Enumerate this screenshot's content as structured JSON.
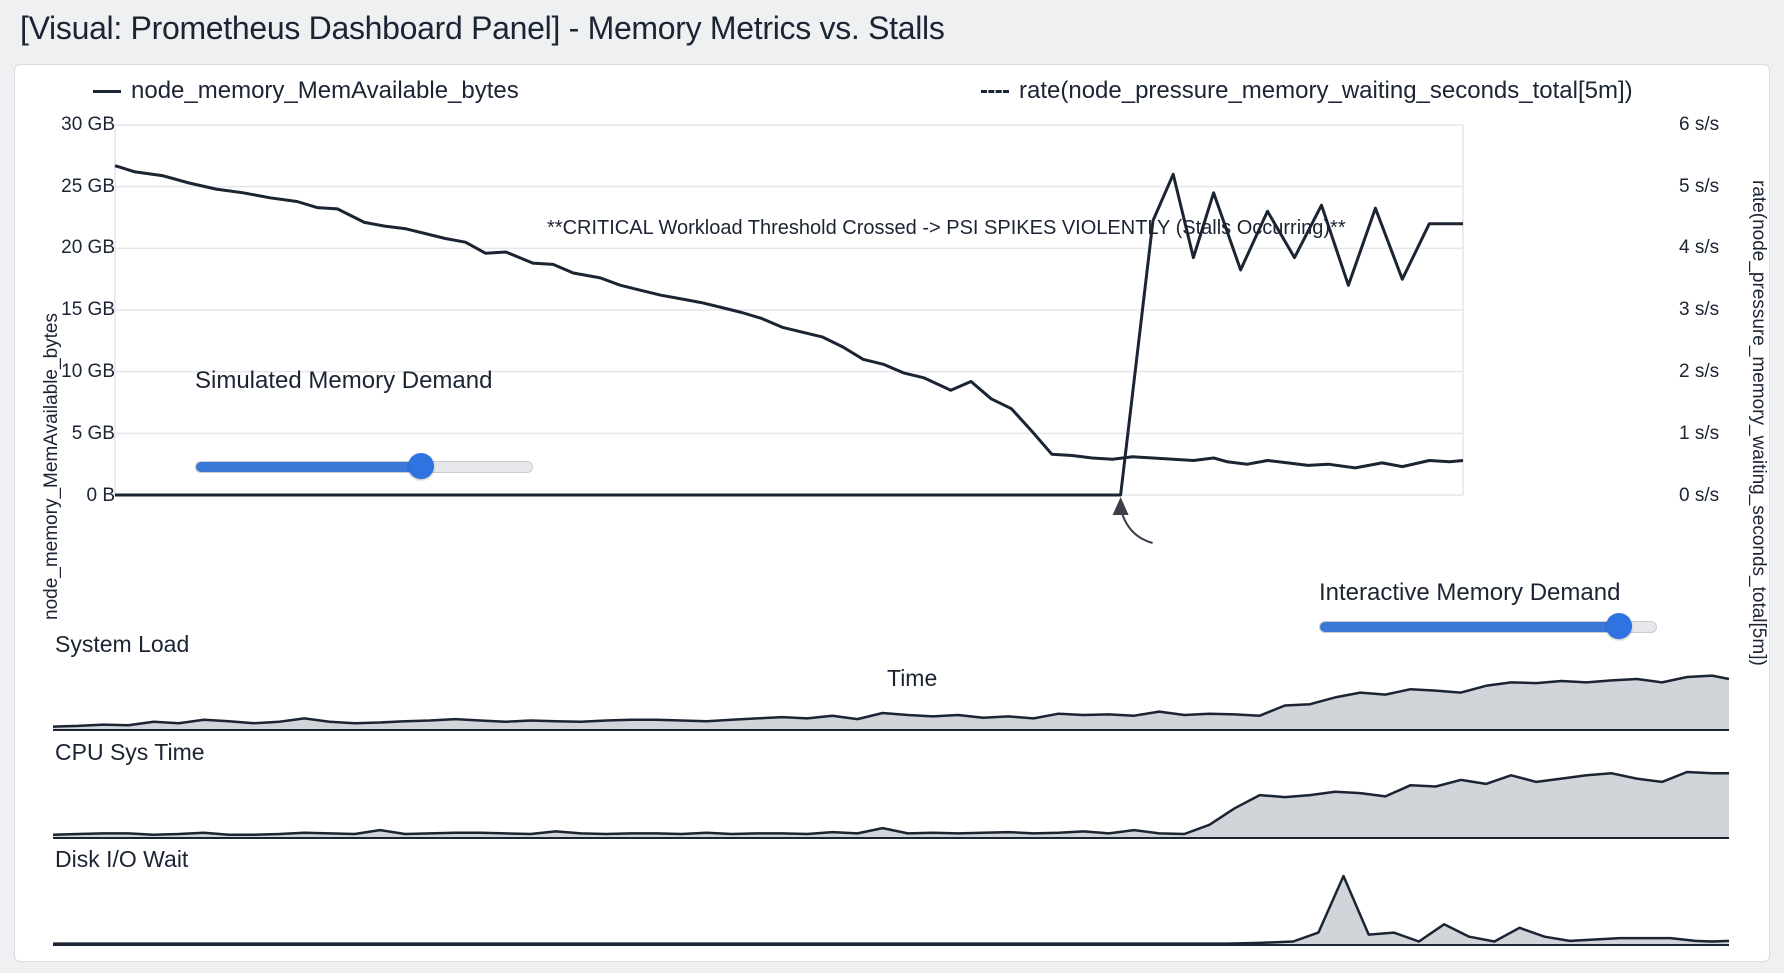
{
  "page": {
    "title": "[Visual: Prometheus Dashboard Panel] - Memory Metrics vs. Stalls"
  },
  "legend": {
    "left_series": "node_memory_MemAvailable_bytes",
    "right_series": "rate(node_pressure_memory_waiting_seconds_total[5m])"
  },
  "annotation": "**CRITICAL Workload Threshold Crossed -> PSI SPIKES VIOLENTLY (Stalls Occurring)**",
  "sliders": [
    {
      "label": "Simulated Memory Demand",
      "value_fraction": 0.67
    },
    {
      "label": "Interactive Memory Demand",
      "value_fraction": 0.89
    }
  ],
  "colors": {
    "line": "#1b2433",
    "grid": "#e3e6ea",
    "accent": "#3b78d8",
    "area_fill": "#c9ccd2"
  },
  "chart_data": [
    {
      "type": "line",
      "xlabel": "Time",
      "ylabel_left": "node_memory_MemAvailable_bytes",
      "ylabel_right": "rate(node_pressure_memory_waiting_seconds_total[5m])",
      "y_left_ticks": [
        "30 GB",
        "25 GB",
        "20 GB",
        "15 GB",
        "10 GB",
        "5 GB",
        "0 B"
      ],
      "y_right_ticks": [
        "6 s/s",
        "5 s/s",
        "4 s/s",
        "3 s/s",
        "2 s/s",
        "1 s/s",
        "0 s/s"
      ],
      "ylim_left": [
        0,
        30
      ],
      "ylim_right": [
        0,
        6
      ],
      "grid": true,
      "series": [
        {
          "name": "node_memory_MemAvailable_bytes",
          "axis": "left",
          "style": "solid",
          "x": [
            0,
            1.5,
            3.5,
            5.5,
            7.5,
            9.5,
            11.5,
            13.5,
            15,
            16.5,
            18.5,
            20,
            21.5,
            23,
            24.5,
            26,
            27.5,
            29,
            31,
            32.5,
            34,
            36,
            37.5,
            39,
            40.5,
            42,
            43.5,
            45,
            46.5,
            48,
            49.5,
            51,
            52.5,
            54,
            55.5,
            57,
            58.5,
            60,
            62,
            63.5,
            65,
            66.5,
            68,
            69.5,
            71,
            72.5,
            74,
            75.5,
            77,
            78.5,
            80,
            81.5,
            82.5,
            84,
            85.5,
            87,
            88.5,
            90,
            92,
            94,
            95.5,
            97.5,
            99,
            100
          ],
          "y": [
            26.7,
            26.2,
            25.9,
            25.3,
            24.8,
            24.5,
            24.1,
            23.8,
            23.3,
            23.2,
            22.1,
            21.8,
            21.6,
            21.2,
            20.8,
            20.5,
            19.6,
            19.7,
            18.8,
            18.7,
            18.0,
            17.6,
            17.0,
            16.6,
            16.2,
            15.9,
            15.6,
            15.2,
            14.8,
            14.3,
            13.6,
            13.2,
            12.8,
            12.0,
            11.0,
            10.6,
            9.9,
            9.5,
            8.5,
            9.2,
            7.8,
            7.0,
            5.2,
            3.3,
            3.2,
            3.0,
            2.9,
            3.1,
            3.0,
            2.9,
            2.8,
            3.0,
            2.7,
            2.5,
            2.8,
            2.6,
            2.4,
            2.5,
            2.2,
            2.6,
            2.3,
            2.8,
            2.7,
            2.8
          ]
        },
        {
          "name": "rate(node_pressure_memory_waiting_seconds_total[5m])",
          "axis": "right",
          "style": "solid",
          "x": [
            0,
            74.6,
            77,
            78.5,
            80,
            81.5,
            83.5,
            85.5,
            87.5,
            89.5,
            91.5,
            93.5,
            95.5,
            97.5,
            100
          ],
          "y": [
            0,
            0,
            4.45,
            5.2,
            3.85,
            4.9,
            3.65,
            4.6,
            3.85,
            4.7,
            3.4,
            4.65,
            3.5,
            4.4,
            4.4
          ]
        }
      ]
    },
    {
      "type": "area",
      "title": "System Load",
      "x": [
        0,
        1.5,
        3,
        4.5,
        6,
        7.5,
        9,
        10.5,
        12,
        13.5,
        15,
        16.5,
        18,
        19.5,
        21,
        22.5,
        24,
        25.5,
        27,
        28.5,
        30,
        31.5,
        33,
        34.5,
        36,
        37.5,
        39,
        40.5,
        42,
        43.5,
        45,
        46.5,
        48,
        49.5,
        51,
        52.5,
        54,
        55.5,
        57,
        58.5,
        60,
        61.5,
        63,
        64.5,
        66,
        67.5,
        69,
        70.5,
        72,
        73.5,
        75,
        76.5,
        78,
        79.5,
        81,
        82.5,
        84,
        85.5,
        87,
        88.5,
        90,
        91.5,
        93,
        94.5,
        96,
        97.5,
        99,
        100
      ],
      "values": [
        0.05,
        0.06,
        0.08,
        0.07,
        0.12,
        0.1,
        0.15,
        0.13,
        0.1,
        0.12,
        0.17,
        0.12,
        0.1,
        0.11,
        0.13,
        0.14,
        0.16,
        0.14,
        0.12,
        0.14,
        0.13,
        0.12,
        0.14,
        0.15,
        0.15,
        0.14,
        0.13,
        0.15,
        0.17,
        0.19,
        0.17,
        0.21,
        0.16,
        0.25,
        0.22,
        0.2,
        0.22,
        0.18,
        0.2,
        0.17,
        0.24,
        0.22,
        0.23,
        0.21,
        0.27,
        0.22,
        0.24,
        0.23,
        0.21,
        0.36,
        0.38,
        0.48,
        0.55,
        0.52,
        0.6,
        0.58,
        0.55,
        0.65,
        0.7,
        0.69,
        0.72,
        0.7,
        0.73,
        0.75,
        0.7,
        0.78,
        0.8,
        0.75
      ]
    },
    {
      "type": "area",
      "title": "CPU Sys Time",
      "x": [
        0,
        1.5,
        3,
        4.5,
        6,
        7.5,
        9,
        10.5,
        12,
        13.5,
        15,
        16.5,
        18,
        19.5,
        21,
        22.5,
        24,
        25.5,
        27,
        28.5,
        30,
        31.5,
        33,
        34.5,
        36,
        37.5,
        39,
        40.5,
        42,
        43.5,
        45,
        46.5,
        48,
        49.5,
        51,
        52.5,
        54,
        55.5,
        57,
        58.5,
        60,
        61.5,
        63,
        64.5,
        66,
        67.5,
        69,
        70.5,
        72,
        73.5,
        75,
        76.5,
        78,
        79.5,
        81,
        82.5,
        84,
        85.5,
        87,
        88.5,
        90,
        91.5,
        93,
        94.5,
        96,
        97.5,
        99,
        100
      ],
      "values": [
        0.05,
        0.06,
        0.07,
        0.07,
        0.05,
        0.06,
        0.08,
        0.05,
        0.05,
        0.06,
        0.08,
        0.07,
        0.06,
        0.12,
        0.06,
        0.07,
        0.08,
        0.08,
        0.07,
        0.06,
        0.1,
        0.07,
        0.06,
        0.07,
        0.07,
        0.06,
        0.08,
        0.06,
        0.07,
        0.07,
        0.06,
        0.09,
        0.07,
        0.15,
        0.07,
        0.08,
        0.07,
        0.08,
        0.09,
        0.07,
        0.08,
        0.1,
        0.07,
        0.12,
        0.07,
        0.06,
        0.2,
        0.45,
        0.65,
        0.62,
        0.65,
        0.7,
        0.68,
        0.63,
        0.8,
        0.78,
        0.88,
        0.82,
        0.95,
        0.85,
        0.9,
        0.95,
        0.98,
        0.9,
        0.85,
        1.0,
        0.98,
        0.98
      ]
    },
    {
      "type": "area",
      "title": "Disk I/O Wait",
      "x": [
        0,
        5,
        10,
        15,
        20,
        25,
        30,
        35,
        40,
        45,
        50,
        55,
        60,
        65,
        70,
        72,
        74,
        75.5,
        77,
        78.5,
        80,
        81.5,
        83,
        84.5,
        86,
        87.5,
        89,
        90.5,
        92,
        93.5,
        95,
        96.5,
        98,
        99,
        100
      ],
      "values": [
        0.02,
        0.02,
        0.02,
        0.02,
        0.02,
        0.02,
        0.02,
        0.02,
        0.02,
        0.02,
        0.02,
        0.02,
        0.02,
        0.02,
        0.02,
        0.03,
        0.05,
        0.18,
        1.0,
        0.15,
        0.18,
        0.05,
        0.3,
        0.12,
        0.05,
        0.25,
        0.12,
        0.06,
        0.08,
        0.1,
        0.1,
        0.1,
        0.06,
        0.05,
        0.06
      ]
    }
  ]
}
